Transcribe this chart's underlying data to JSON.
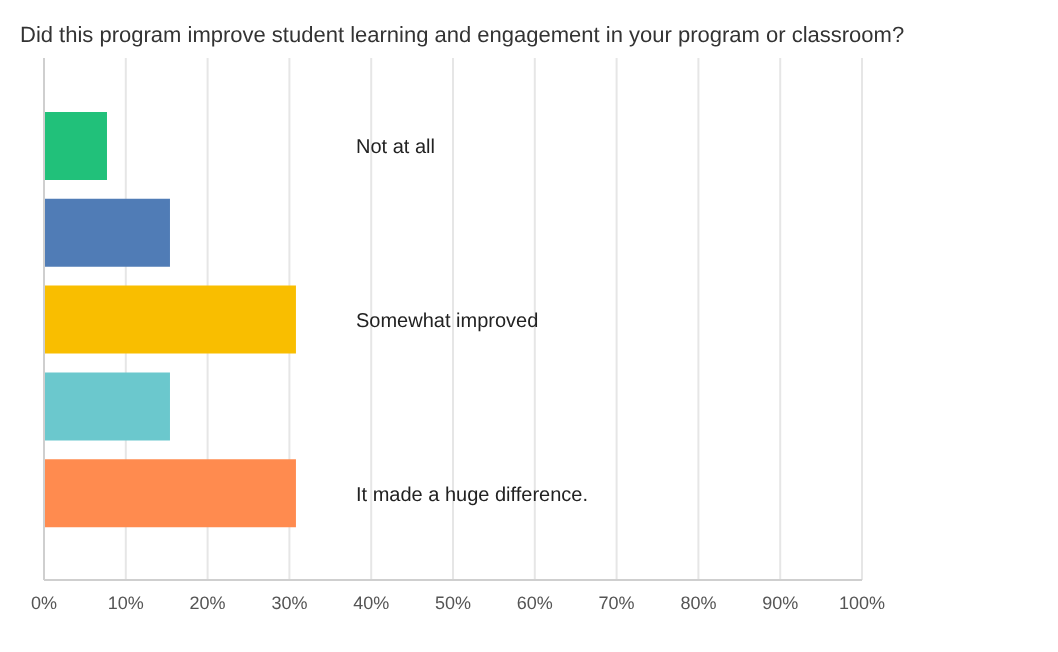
{
  "chart_data": {
    "type": "bar",
    "orientation": "horizontal",
    "title": "Did this program improve student learning and engagement in your program or classroom?",
    "categories": [
      "Not at all",
      null,
      "Somewhat improved",
      null,
      "It made a huge difference."
    ],
    "values": [
      7.7,
      15.4,
      30.8,
      15.4,
      30.8
    ],
    "colors": [
      "#21c17a",
      "#507cb6",
      "#f9be00",
      "#6bc8cd",
      "#ff8b4f"
    ],
    "xlim": [
      0,
      100
    ],
    "xticks": [
      {
        "value": 0,
        "label": "0%"
      },
      {
        "value": 10,
        "label": "10%"
      },
      {
        "value": 20,
        "label": "20%"
      },
      {
        "value": 30,
        "label": "30%"
      },
      {
        "value": 40,
        "label": "40%"
      },
      {
        "value": 50,
        "label": "50%"
      },
      {
        "value": 60,
        "label": "60%"
      },
      {
        "value": 70,
        "label": "70%"
      },
      {
        "value": 80,
        "label": "80%"
      },
      {
        "value": 90,
        "label": "90%"
      },
      {
        "value": 100,
        "label": "100%"
      }
    ],
    "grid": "x"
  }
}
